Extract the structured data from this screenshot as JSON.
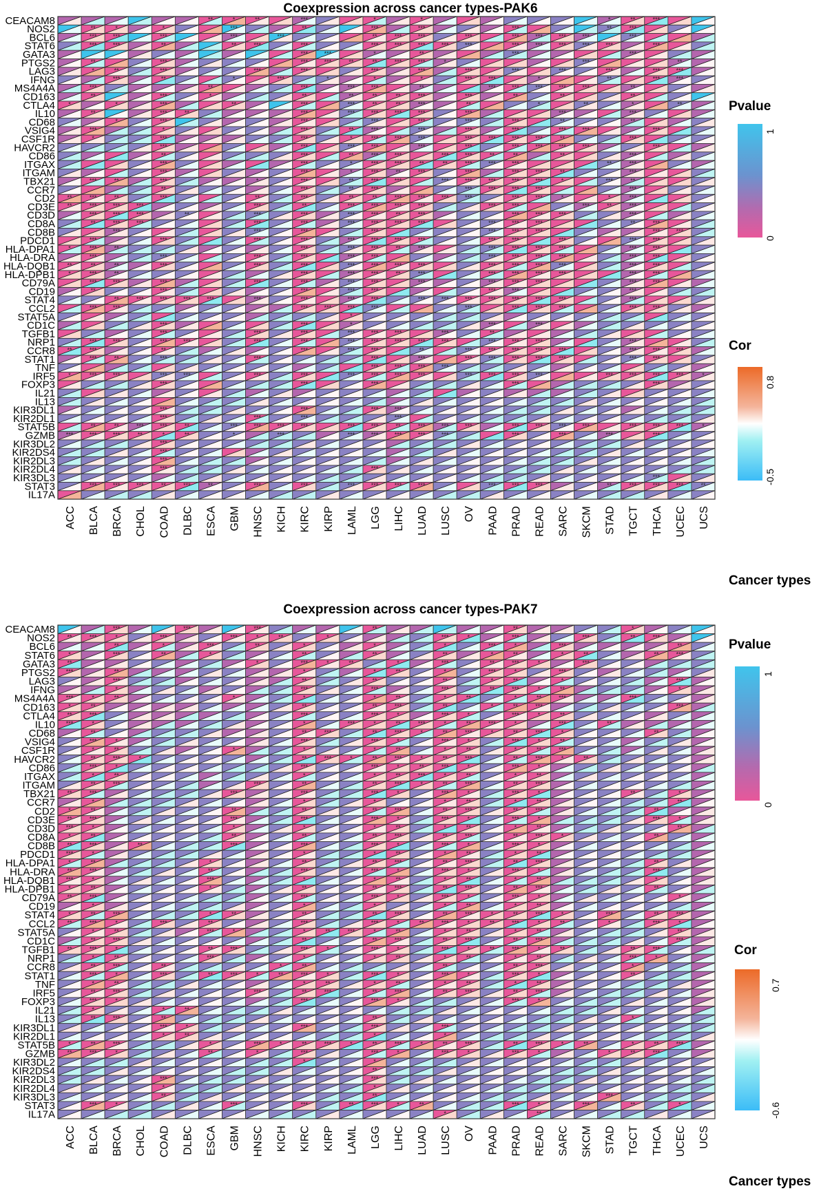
{
  "chart_data": [
    {
      "type": "heatmap",
      "title": "Coexpression across cancer types-PAK6",
      "xlabel": "Cancer types",
      "categories": [
        "ACC",
        "BLCA",
        "BRCA",
        "CHOL",
        "COAD",
        "DLBC",
        "ESCA",
        "GBM",
        "HNSC",
        "KICH",
        "KIRC",
        "KIRP",
        "LAML",
        "LGG",
        "LIHC",
        "LUAD",
        "LUSC",
        "OV",
        "PAAD",
        "PRAD",
        "READ",
        "SARC",
        "SKCM",
        "STAD",
        "TGCT",
        "THCA",
        "UCEC",
        "UCS"
      ],
      "genes": [
        "CEACAM8",
        "NOS2",
        "BCL6",
        "STAT6",
        "GATA3",
        "PTGS2",
        "LAG3",
        "IFNG",
        "MS4A4A",
        "CD163",
        "CTLA4",
        "IL10",
        "CD68",
        "VSIG4",
        "CSF1R",
        "HAVCR2",
        "CD86",
        "ITGAX",
        "ITGAM",
        "TBX21",
        "CCR7",
        "CD2",
        "CD3E",
        "CD3D",
        "CD8A",
        "CD8B",
        "PDCD1",
        "HLA-DPA1",
        "HLA-DRA",
        "HLA-DQB1",
        "HLA-DPB1",
        "CD79A",
        "CD19",
        "STAT4",
        "CCL2",
        "STAT5A",
        "CD1C",
        "TGFB1",
        "NRP1",
        "CCR8",
        "STAT1",
        "TNF",
        "IRF5",
        "FOXP3",
        "IL21",
        "IL13",
        "KIR3DL1",
        "KIR2DL1",
        "STAT5B",
        "GZMB",
        "KIR3DL2",
        "KIR2DS4",
        "KIR2DL3",
        "KIR2DL4",
        "KIR3DL3",
        "STAT3",
        "IL17A"
      ],
      "legend_pvalue": {
        "title": "Pvalue",
        "min": 0,
        "max": 1,
        "low_color": "#e8579a",
        "mid_color": "#8a7bbf",
        "high_color": "#3ec4ec"
      },
      "legend_cor": {
        "title": "Cor",
        "min": -0.5,
        "max": 0.8,
        "low_color": "#3bbcf7",
        "mid_color": "#ffffff",
        "high_color": "#ec6a28"
      },
      "note": "Each cell: upper-left triangle = Pvalue color, lower-right triangle = Cor color; stars mark significance (* p<0.05, ** p<0.01, *** p<0.001). Values approximated from pixel colors.",
      "pvalue_levels": "Encoded per row as string of 28 chars: s=strong significant (p~0), m=moderate (p~0.3), n=nonsig (p~0.6), h=high p (~1)",
      "cor_levels": "Encoded per row as 28 chars: A=0.5, B=0.3, C=0.15, D=0.05, E=-0.05, F=-0.15, G=-0.3",
      "stars": "Encoded per row as 28 chars: 0/1/2/3 stars",
      "pvalues": [
        "mmmhmmssssmnssmsmsmnnnhmsssh",
        "hssmsnshnmsnhsmsmnmssnhnssnh",
        "msshshsmshnnssssnsssmsmhnssm",
        "nssmsmhssnsnnssssnssmsnsmssn",
        "mhhmnmhmhsshsmmsmsmnmmssmsnm",
        "mssnsmnnnsssssssmnssmsnsssmm",
        "mssnsmnnsmssnsmsmssnsnnsmssm",
        "nmsmsnsnssnnmsmsnsssmssnssmn",
        "msnmmmssmnsmmssmmsmsnsssmsnm",
        "mshmsnsmnnssmsssmsmsnssnssnh",
        "smsmsmssmhssnssmmssnnsnnmsnm",
        "mshmssnmmmssnsssnsmssmmsmnsm",
        "nmsnshnmnmssnnssnnnssnnnmsmn",
        "msmnsnsnnmsnsmsnmsmsnsssmssn",
        "msnnsmmmnnsnsssnssssssnnssnn",
        "nnnnsmsnsmssnssmssnssssmnssm",
        "nmsmsnsnnnsssmssssssmssnmsmn",
        "nssnsnsmsmsnnsssssnssssnmsnm",
        "nmsnsmsnmnssmsmsnsmsssnnmssn",
        "mssmsnmmmnssnsssnssssssnmssn",
        "nsmnsnnnmnsnnsmsnnsssssnmsnn",
        "sssnsnsnsnsnsssssnnssmssmssn",
        "ssssmnmnsnsnssssnnsssnmsmssn",
        "msssmnsnnnsmnsssmnnsssnnmsmn",
        "nsssnnsnsnsmnssssnnssssnnssn",
        "nsmnsnsnnnssnssnnnnsssnmmssn",
        "ssmnsnsnsnsnmsssnnssssnsnssn",
        "ssmnnnmnmnsnnssmsnnssssnmssn",
        "msmnnnsnsnssmssnmnnssssnmssn",
        "ssmmsnsnsnssnssssnsssnsnmssn",
        "ssmnnnsnmnssmssnsnssssssmssn",
        "sssmsmsnsnsmnssmmnmssssnmssm",
        "msnnsnsnmnssnssmsnsmssnnmsnn",
        "nnssssssmnssmsnnnssssssnmssn",
        "sssnnmnnmmsssnssnnsssssnssnm",
        "nsmnsnnnmnnnsnnnnnnmnnnnnsnn",
        "msnnsmsnsnssmnnnnnmsmsmnnnnn",
        "snmnsnsnsnssnsssmnsmsmnnssnn",
        "nssnsssnsnssnsssssnssmsnmssn",
        "ssmnsnmnmnssnssnsnsssssnmssm",
        "mssnnnnnsnnnnssmssnssssnnssn",
        "nsmnsnnnnnmnssssnnnnnmnnsnnm",
        "ssssnnsnsnssnssssnssnssssssm",
        "snnnsnsnnnssnssnnnnssmnnnsmn",
        "nsnnmnsnmnmnnnmnsmnmmmnnsnnn",
        "nnnnsnnnnnnnnnmnnnnnnnnnnnnn",
        "mnnnsnnnnnsnnsmnnnnnnnnnmnnn",
        "nnnnsnnnsnnnnnnsnnnnnnnnnnnn",
        "sssmssnnssssssssmsmssnsssssm",
        "msssssnnmnnmnmssnnssnsnmssnn",
        "nnnnsnnnnnnnnnmnnnnnnnnnnnnn",
        "nnnnsnnsmnnnnnmnnnnnnnnnnnnn",
        "nnnnsnnnmnnnnnmnnnnnnnnnnnnn",
        "nnnnsnnnnnnnnsnnnnnnnnnnnnnn",
        "nnnnmnnnnnnnnnnnnnnnnnnnnnsn",
        "nsssssmnsnsnnsssnsnssmnmsssn",
        "snnnnnnnnnnnnnnnnnnnnnnnnnnn"
      ],
      "stars_rows": [
        "0000002120300101000000012300",
        "0210100300200303000300023000",
        "0330300303000233030333303000",
        "0330200230300333330333330300",
        "0000000000330102000300003000",
        "0200300000332233100000300020",
        "0120300030300303030303030330",
        "0030200103010101033010020330",
        "0300002000303302003333302000",
        "0200301000202223030202002000",
        "1010300200303223020010201020",
        "0200320000303333030003003000",
        "0010300000300303030302002000",
        "0300100000302303030303300300",
        "0100300000301333033332003000",
        "0000300000303303030333300300",
        "0000200000302330332202003000",
        "0000300000301332233300023000",
        "0000300000301323030332003000",
        "0320300010302330333331032000",
        "0000200000302300033330003000",
        "2320300020302233330331013000",
        "2333000030203333003300323000",
        "0333020030303323000333003000",
        "0233000030303333003330002300",
        "0030000030300300003330000330",
        "0300300030303333003303003300",
        "1320000000303323003333003300",
        "0300300030303300003333003300",
        "2220300030303333003333003300",
        "1320000000303323003333003300",
        "0330300030303303003330003300",
        "0200300000303300003300003000",
        "0023333030303303333333003000",
        "0330000000333300030333003300",
        "0000000000001000000000000000",
        "0000300000301000003030000000",
        "0000300030303330302000000000",
        "0330330030303333303330003000",
        "2300200000303302033333003330",
        "0320300030000303033333003300",
        "0000000000000333300000000000",
        "1330330030303333033330033331",
        "0000300000300300000300000300",
        "0000000000000000000000000000",
        "0000000000000000000000000000",
        "0000300000300330000000000000",
        "0000300030300030000000000000",
        "0223320333303323330333303331",
        "3332120103003333300303030300",
        "0000300000000000000000000000",
        "0000300000000000000000000000",
        "0000300000000000000000000000",
        "0000300000000300000000000000",
        "0000000000000000000000000300",
        "0333232030303333003330023332",
        "0000000000000000000000000000"
      ]
    },
    {
      "type": "heatmap",
      "title": "Coexpression across cancer types-PAK7",
      "xlabel": "Cancer types",
      "categories": [
        "ACC",
        "BLCA",
        "BRCA",
        "CHOL",
        "COAD",
        "DLBC",
        "ESCA",
        "GBM",
        "HNSC",
        "KICH",
        "KIRC",
        "KIRP",
        "LAML",
        "LGG",
        "LIHC",
        "LUAD",
        "LUSC",
        "OV",
        "PAAD",
        "PRAD",
        "READ",
        "SARC",
        "SKCM",
        "STAD",
        "TGCT",
        "THCA",
        "UCEC",
        "UCS"
      ],
      "genes": [
        "CEACAM8",
        "NOS2",
        "BCL6",
        "STAT6",
        "GATA3",
        "PTGS2",
        "LAG3",
        "IFNG",
        "MS4A4A",
        "CD163",
        "CTLA4",
        "IL10",
        "CD68",
        "VSIG4",
        "CSF1R",
        "HAVCR2",
        "CD86",
        "ITGAX",
        "ITGAM",
        "TBX21",
        "CCR7",
        "CD2",
        "CD3E",
        "CD3D",
        "CD8A",
        "CD8B",
        "PDCD1",
        "HLA-DPA1",
        "HLA-DRA",
        "HLA-DQB1",
        "HLA-DPB1",
        "CD79A",
        "CD19",
        "STAT4",
        "CCL2",
        "STAT5A",
        "CD1C",
        "TGFB1",
        "NRP1",
        "CCR8",
        "STAT1",
        "TNF",
        "IRF5",
        "FOXP3",
        "IL21",
        "IL13",
        "KIR3DL1",
        "KIR2DL1",
        "STAT5B",
        "GZMB",
        "KIR3DL2",
        "KIR2DS4",
        "KIR2DL3",
        "KIR2DL4",
        "KIR3DL3",
        "STAT3",
        "IL17A"
      ],
      "legend_pvalue": {
        "title": "Pvalue",
        "min": 0,
        "max": 1,
        "low_color": "#e8579a",
        "mid_color": "#8a7bbf",
        "high_color": "#3ec4ec"
      },
      "legend_cor": {
        "title": "Cor",
        "min": -0.6,
        "max": 0.7,
        "low_color": "#3bbcf7",
        "mid_color": "#ffffff",
        "high_color": "#ec6a28"
      },
      "pvalues": [
        "hmsmhsmhsnmmhsmmhmmsmmnnsmnh",
        "sssnsmnsssnsnmmnssmsmnsnssmh",
        "mmsmsmsnsnsnmsmnsnssmsmmmmsn",
        "smsnsmsnmnsnmsmnsmssmssnmssn",
        "smmnnmnmsnsssnsmsnsssmsnnmnn",
        "smsmmmnnmmsnmssnsnssnsnmnnmn",
        "nmsnnmnnmmsnnsnnsnssmsnnnmsm",
        "mmsmnnmnmnsnnsmnsnssssmnnmsm",
        "sssmnnnsmnsnnssnssnsssmmsnnm",
        "ssmmmmnmmnsnnssnsnsssmnnnnsm",
        "ssnmmmmnmnsnnssmssnsssnnnmnm",
        "ssnmmmnnmnsnssssssssmsnsmmmm",
        "msnmnnnmmnssnsssssssssnnnsnm",
        "nssmnnnnmnsnnssnssnsssnnmnnm",
        "nssnnmnsmnsnnssnssnsssnnmnnm",
        "nsssnnnnmnssssssssnssssnnnnm",
        "nssnnnnnnnsnnsssssnssmnnnnnm",
        "nssnnnmnnnsnnsssssnssmnnnnnm",
        "nssnnnmnsnsnnsssssnssmnnnnnm",
        "ssmnnnnsmnsnnssnssnssmnnsnsm",
        "msmnnnnnmnsnnsnnssnssmnnnnsm",
        "ssmnnnnsmnsnnssnssnssmnnnsmm",
        "ssmnnnnsmnsnnssnssnssmnnnssm",
        "ssmnnnnsmnsnnssnssnssmnnnnsm",
        "ssmnnnnsmnsnnssnssnsssnnnsnm",
        "ssmsnnnsmnsnnssnssnssmnnnnnm",
        "ssmnnnnnmnsnnssnssnssmnnnnnm",
        "ssmnnnsnmnsnnssnssnssmnnnsnm",
        "ssmnnnsnmnsnnssnssnssmnnnsnm",
        "ssmnnnsnmnsnnssnssnssmnnnsnm",
        "ssmnnnsnmnsnnssnssnssmnnnsnm",
        "ssmnnnnnmnsnnssnssnssmnnnnsm",
        "msmnnnnnmnsnnsnnssnssmnnnnnm",
        "sssnnnssmnsnnssnssssssnsnssm",
        "sssnsnsnmnsnnsssssssssnsnssm",
        "nssnnmssmnsssssnssnssmnnnnsm",
        "mssnnnnnmnsnnssnssnssmnnnnsm",
        "sssnnnssnnssnssnssssssnnssnm",
        "nssnnnsnmnsnnssnssnssnnnssnm",
        "nssnsnnnnssnnnnnsnnssnnnsnnm",
        "nssnsnssssssnssnssnssmnnsnnm",
        "nssnnnnnmnssnssnssnssmnnnnnm",
        "nssnnnnnsnssnssnssnssmnnnnnm",
        "nssnnnnnmnsnnssnnnnssnnnnnnm",
        "nsnnssnnnnnnnnnnnnnnnnnnnnnm",
        "nssnsnnnnnnnnsnnnnnnnnnnsnnn",
        "nnnnssnnnnsnnsnnsnnnnnnnnnnn",
        "nnnnssnnnnnnnsnnsnnnnnnnnnnn",
        "sssnnnsnssssssssssnssssnsssm",
        "sssnnnsnsnsnnssnssnssmnsssnm",
        "nnnnnnnnnnsnnsnnnnnnnnnnnnnn",
        "nnnnnnnnnnnnnsnnnnnnnnnnnnnn",
        "nnnnsnnnnnnnnsnnnnnnnnnnnnnn",
        "nnnnsnnnnnnnnsnnnnnnnnnnnnnn",
        "nnnnsnnnnnnnnsnnnnnnnnnsnnnn",
        "nssnnnnsnnsnssssnnnssnsnsnsn",
        "nnnnnnnnnnnnnnnnsnnnsnnnnnnn"
      ]
    }
  ]
}
